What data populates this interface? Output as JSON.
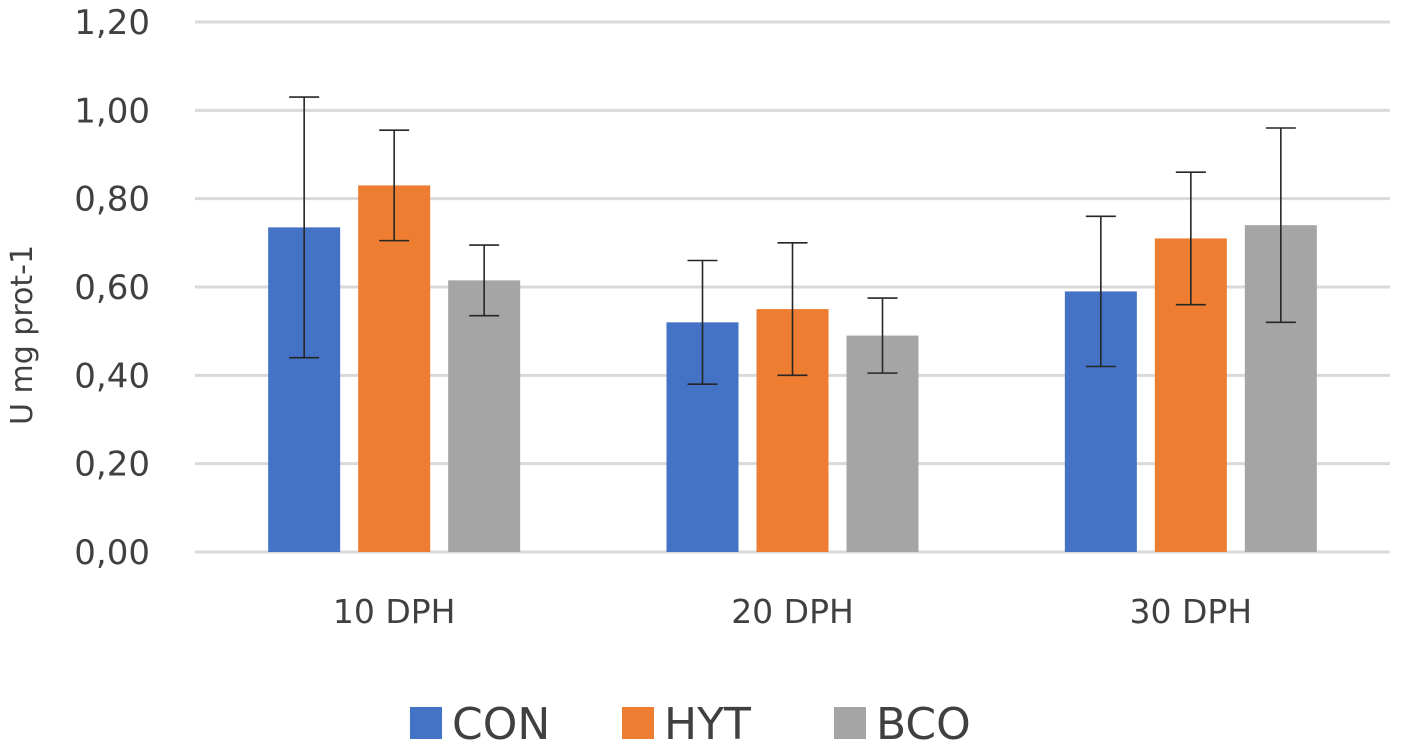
{
  "chart_data": {
    "type": "bar",
    "title": "",
    "xlabel": "",
    "ylabel": "U mg prot-1",
    "ylim": [
      0,
      1.2
    ],
    "yticks": [
      0.0,
      0.2,
      0.4,
      0.6,
      0.8,
      1.0,
      1.2
    ],
    "ytick_labels": [
      "0,00",
      "0,20",
      "0,40",
      "0,60",
      "0,80",
      "1,00",
      "1,20"
    ],
    "grid": true,
    "legend_position": "bottom-center",
    "categories": [
      "10 DPH",
      "20 DPH",
      "30 DPH"
    ],
    "series": [
      {
        "name": "CON",
        "color": "#4472c4",
        "values": [
          0.735,
          0.52,
          0.59
        ],
        "errors": [
          0.295,
          0.14,
          0.17
        ]
      },
      {
        "name": "HYT",
        "color": "#ed7d31",
        "values": [
          0.83,
          0.55,
          0.71
        ],
        "errors": [
          0.125,
          0.15,
          0.15
        ]
      },
      {
        "name": "BCO",
        "color": "#a5a5a5",
        "values": [
          0.615,
          0.49,
          0.74
        ],
        "errors": [
          0.08,
          0.085,
          0.22
        ]
      }
    ]
  }
}
